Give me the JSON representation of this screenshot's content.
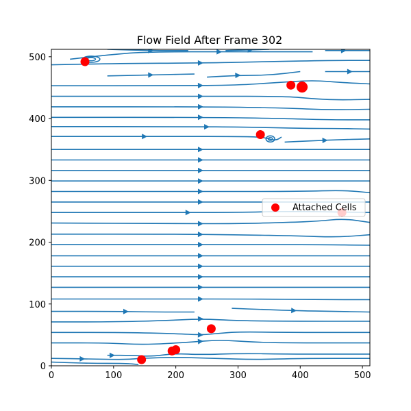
{
  "chart_data": {
    "type": "scatter",
    "title": "Flow Field After Frame 302",
    "xlabel": "",
    "ylabel": "",
    "xlim": [
      0,
      512
    ],
    "ylim": [
      0,
      512
    ],
    "xticks": [
      0,
      100,
      200,
      300,
      400,
      500
    ],
    "yticks": [
      0,
      100,
      200,
      300,
      400,
      500
    ],
    "grid": false,
    "legend_position": "center-right",
    "series": [
      {
        "name": "Attached Cells",
        "color": "#ff0000",
        "points": [
          {
            "x": 54,
            "y": 492,
            "size": 1.0
          },
          {
            "x": 385,
            "y": 454,
            "size": 1.0
          },
          {
            "x": 403,
            "y": 451,
            "size": 1.25
          },
          {
            "x": 336,
            "y": 374,
            "size": 1.0
          },
          {
            "x": 467,
            "y": 248,
            "size": 1.0
          },
          {
            "x": 257,
            "y": 60,
            "size": 1.0
          },
          {
            "x": 145,
            "y": 10,
            "size": 1.0
          },
          {
            "x": 194,
            "y": 24,
            "size": 1.0
          },
          {
            "x": 200,
            "y": 26,
            "size": 1.0
          }
        ]
      }
    ],
    "streamlines": {
      "color": "#1f77b4",
      "lines": [
        {
          "arrow_x": 240,
          "pts": [
            [
              0,
              6
            ],
            [
              60,
              4
            ],
            [
              120,
              4
            ],
            [
              140,
              2
            ]
          ]
        },
        {
          "arrow_x": 50,
          "pts": [
            [
              0,
              12
            ],
            [
              60,
              11
            ],
            [
              120,
              10
            ],
            [
              140,
              12
            ],
            [
              200,
              14
            ],
            [
              260,
              12
            ],
            [
              330,
              10
            ],
            [
              400,
              12
            ],
            [
              512,
              12
            ]
          ]
        },
        {
          "arrow_x": 98,
          "pts": [
            [
              90,
              17
            ],
            [
              130,
              17
            ],
            [
              160,
              15
            ],
            [
              200,
              20
            ],
            [
              240,
              18
            ],
            [
              300,
              20
            ],
            [
              380,
              19
            ],
            [
              440,
              19
            ],
            [
              512,
              19
            ]
          ]
        },
        {
          "arrow_x": 240,
          "pts": [
            [
              0,
              37
            ],
            [
              90,
              37
            ],
            [
              150,
              34
            ],
            [
              220,
              38
            ],
            [
              270,
              42
            ],
            [
              330,
              38
            ],
            [
              390,
              37
            ],
            [
              512,
              37
            ]
          ]
        },
        {
          "arrow_x": 240,
          "pts": [
            [
              0,
              54
            ],
            [
              120,
              54
            ],
            [
              200,
              52
            ],
            [
              240,
              50
            ],
            [
              265,
              52
            ],
            [
              300,
              55
            ],
            [
              370,
              54
            ],
            [
              512,
              54
            ]
          ]
        },
        {
          "arrow_x": 240,
          "pts": [
            [
              0,
              71
            ],
            [
              100,
              71
            ],
            [
              180,
              73
            ],
            [
              240,
              76
            ],
            [
              300,
              73
            ],
            [
              380,
              72
            ],
            [
              512,
              72
            ]
          ]
        },
        {
          "arrow_x": 120,
          "pts": [
            [
              0,
              88
            ],
            [
              100,
              88
            ],
            [
              170,
              87
            ],
            [
              230,
              87
            ]
          ]
        },
        {
          "arrow_x": 390,
          "pts": [
            [
              290,
              93
            ],
            [
              340,
              91
            ],
            [
              400,
              89
            ],
            [
              450,
              88
            ],
            [
              512,
              87
            ]
          ]
        },
        {
          "arrow_x": 240,
          "pts": [
            [
              0,
              108
            ],
            [
              200,
              108
            ],
            [
              320,
              108
            ],
            [
              430,
              107
            ],
            [
              512,
              107
            ]
          ]
        },
        {
          "arrow_x": 240,
          "pts": [
            [
              0,
              127
            ],
            [
              250,
              127
            ],
            [
              512,
              127
            ]
          ]
        },
        {
          "arrow_x": 240,
          "pts": [
            [
              0,
              144
            ],
            [
              250,
              144
            ],
            [
              512,
              144
            ]
          ]
        },
        {
          "arrow_x": 240,
          "pts": [
            [
              0,
              161
            ],
            [
              250,
              161
            ],
            [
              512,
              161
            ]
          ]
        },
        {
          "arrow_x": 240,
          "pts": [
            [
              0,
              178
            ],
            [
              250,
              178
            ],
            [
              512,
              178
            ]
          ]
        },
        {
          "arrow_x": 240,
          "pts": [
            [
              0,
              196
            ],
            [
              250,
              196
            ],
            [
              430,
              196
            ],
            [
              512,
              195
            ]
          ]
        },
        {
          "arrow_x": 240,
          "pts": [
            [
              0,
              213
            ],
            [
              200,
              213
            ],
            [
              300,
              212
            ],
            [
              400,
              210
            ],
            [
              460,
              208
            ],
            [
              512,
              212
            ]
          ]
        },
        {
          "arrow_x": 240,
          "pts": [
            [
              0,
              231
            ],
            [
              200,
              230
            ],
            [
              300,
              230
            ],
            [
              380,
              232
            ],
            [
              430,
              234
            ],
            [
              470,
              238
            ],
            [
              512,
              232
            ]
          ]
        },
        {
          "arrow_x": 220,
          "pts": [
            [
              0,
              248
            ],
            [
              200,
              248
            ],
            [
              300,
              248
            ],
            [
              380,
              250
            ],
            [
              512,
              248
            ]
          ]
        },
        {
          "arrow_x": 240,
          "pts": [
            [
              0,
              265
            ],
            [
              200,
              265
            ],
            [
              300,
              265
            ],
            [
              380,
              265
            ],
            [
              512,
              265
            ]
          ]
        },
        {
          "arrow_x": 240,
          "pts": [
            [
              0,
              282
            ],
            [
              250,
              282
            ],
            [
              400,
              282
            ],
            [
              470,
              284
            ],
            [
              512,
              280
            ]
          ]
        },
        {
          "arrow_x": 240,
          "pts": [
            [
              0,
              299
            ],
            [
              250,
              299
            ],
            [
              400,
              299
            ],
            [
              512,
              299
            ]
          ]
        },
        {
          "arrow_x": 240,
          "pts": [
            [
              0,
              316
            ],
            [
              250,
              316
            ],
            [
              400,
              316
            ],
            [
              512,
              316
            ]
          ]
        },
        {
          "arrow_x": 240,
          "pts": [
            [
              0,
              333
            ],
            [
              250,
              333
            ],
            [
              512,
              333
            ]
          ]
        },
        {
          "arrow_x": 240,
          "pts": [
            [
              0,
              350
            ],
            [
              250,
              350
            ],
            [
              512,
              350
            ]
          ]
        },
        {
          "arrow_x": 150,
          "pts": [
            [
              0,
              371
            ],
            [
              200,
              371
            ],
            [
              300,
              371
            ],
            [
              340,
              370
            ],
            [
              360,
              364
            ],
            [
              370,
              370
            ]
          ]
        },
        {
          "arrow_x": 440,
          "pts": [
            [
              375,
              362
            ],
            [
              420,
              364
            ],
            [
              470,
              366
            ],
            [
              512,
              367
            ]
          ]
        },
        {
          "arrow_x": 250,
          "pts": [
            [
              0,
              387
            ],
            [
              200,
              387
            ],
            [
              330,
              386
            ],
            [
              400,
              384
            ],
            [
              460,
              384
            ],
            [
              512,
              383
            ]
          ]
        },
        {
          "arrow_x": 240,
          "pts": [
            [
              0,
              402
            ],
            [
              250,
              402
            ],
            [
              380,
              400
            ],
            [
              440,
              398
            ],
            [
              512,
              398
            ]
          ]
        },
        {
          "arrow_x": 240,
          "pts": [
            [
              0,
              419
            ],
            [
              250,
              419
            ],
            [
              380,
              417
            ],
            [
              440,
              414
            ],
            [
              512,
              415
            ]
          ]
        },
        {
          "arrow_x": 240,
          "pts": [
            [
              0,
              436
            ],
            [
              250,
              436
            ],
            [
              380,
              436
            ],
            [
              420,
              432
            ],
            [
              460,
              430
            ],
            [
              512,
              431
            ]
          ]
        },
        {
          "arrow_x": 240,
          "pts": [
            [
              0,
              453
            ],
            [
              200,
              453
            ],
            [
              300,
              454
            ],
            [
              360,
              458
            ],
            [
              420,
              462
            ],
            [
              470,
              458
            ],
            [
              512,
              456
            ]
          ]
        },
        {
          "arrow_x": 160,
          "pts": [
            [
              90,
              469
            ],
            [
              180,
              471
            ],
            [
              230,
              472
            ]
          ]
        },
        {
          "arrow_x": 300,
          "pts": [
            [
              250,
              467
            ],
            [
              300,
              470
            ],
            [
              350,
              470
            ],
            [
              400,
              476
            ]
          ]
        },
        {
          "arrow_x": 480,
          "pts": [
            [
              440,
              476
            ],
            [
              512,
              476
            ]
          ]
        },
        {
          "arrow_x": 240,
          "pts": [
            [
              0,
              487
            ],
            [
              100,
              489
            ],
            [
              250,
              490
            ],
            [
              350,
              492
            ],
            [
              450,
              494
            ],
            [
              512,
              494
            ]
          ]
        },
        {
          "arrow_x": 270,
          "pts": [
            [
              30,
              496
            ],
            [
              90,
              503
            ],
            [
              150,
              508
            ],
            [
              300,
              508
            ],
            [
              380,
              508
            ],
            [
              420,
              508
            ]
          ]
        },
        {
          "arrow_x": 160,
          "pts": [
            [
              90,
              512
            ],
            [
              160,
              510
            ],
            [
              220,
              510
            ]
          ]
        },
        {
          "arrow_x": 320,
          "pts": [
            [
              280,
              510
            ],
            [
              350,
              512
            ]
          ]
        },
        {
          "arrow_x": 470,
          "pts": [
            [
              440,
              510
            ],
            [
              512,
              510
            ]
          ]
        }
      ],
      "vortices": [
        {
          "cx": 64,
          "cy": 496,
          "rx": 14,
          "ry": 5
        },
        {
          "cx": 352,
          "cy": 367,
          "rx": 7,
          "ry": 5
        }
      ]
    }
  }
}
